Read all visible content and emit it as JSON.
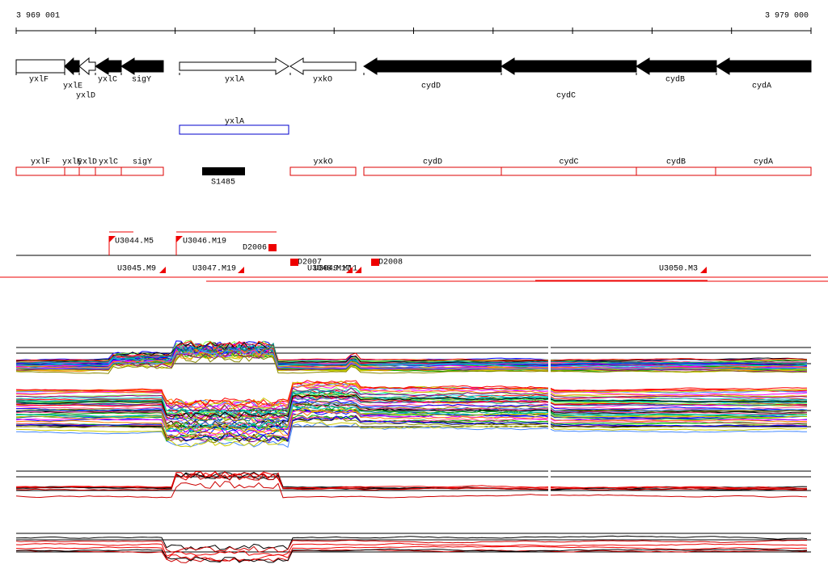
{
  "ruler": {
    "start": "3 969 001",
    "end": "3 979 000"
  },
  "genes": [
    "yxlF",
    "yxlE",
    "yxlD",
    "yxlC",
    "sigY",
    "yxlA",
    "yxkO",
    "cydD",
    "cydC",
    "cydB",
    "cydA"
  ],
  "annotation": {
    "label": "yxlA"
  },
  "transcripts": [
    "yxlF",
    "yxlE",
    "yxlD",
    "yxlC",
    "sigY",
    "yxkO",
    "cydD",
    "cydC",
    "cydB",
    "cydA"
  ],
  "rna": {
    "label": "S1485"
  },
  "segments": [
    "U3044.M5",
    "U3046.M19",
    "D2006",
    "D2007",
    "U3048.M17",
    "U3049.M11",
    "D2008",
    "U3045.M9",
    "U3047.M19",
    "U3050.M3"
  ]
}
